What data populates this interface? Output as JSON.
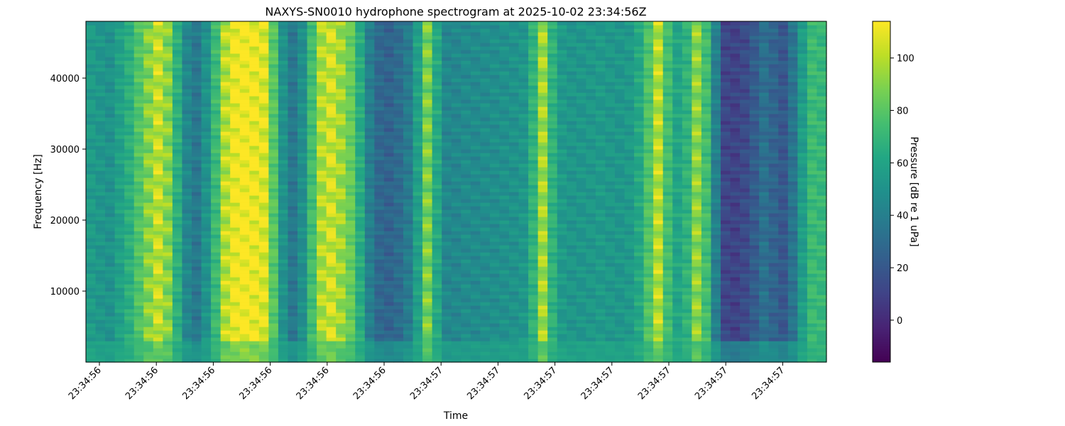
{
  "chart_data": {
    "type": "heatmap",
    "title": "NAXYS-SN0010 hydrophone spectrogram at 2025-10-02 23:34:56Z",
    "xlabel": "Time",
    "ylabel": "Frequency [Hz]",
    "colorbar_label": "Pressure [dB re 1 uPa]",
    "colormap": "viridis",
    "color_range": [
      -16,
      114
    ],
    "ylim": [
      0,
      48000
    ],
    "y_ticks": [
      10000,
      20000,
      30000,
      40000
    ],
    "x_tick_labels": [
      "23:34:56",
      "23:34:56",
      "23:34:56",
      "23:34:56",
      "23:34:56",
      "23:34:56",
      "23:34:57",
      "23:34:57",
      "23:34:57",
      "23:34:57",
      "23:34:57",
      "23:34:57",
      "23:34:57"
    ],
    "colorbar_ticks": [
      0,
      20,
      40,
      60,
      80,
      100
    ],
    "column_levels_db": [
      55,
      52,
      50,
      58,
      66,
      78,
      90,
      102,
      90,
      66,
      44,
      36,
      50,
      72,
      100,
      112,
      114,
      112,
      108,
      80,
      50,
      36,
      48,
      74,
      98,
      104,
      95,
      84,
      64,
      40,
      28,
      26,
      30,
      38,
      58,
      88,
      62,
      44,
      44,
      46,
      46,
      47,
      48,
      49,
      50,
      52,
      68,
      96,
      68,
      54,
      52,
      52,
      53,
      54,
      53,
      52,
      54,
      62,
      78,
      100,
      74,
      60,
      68,
      92,
      74,
      40,
      12,
      10,
      14,
      22,
      32,
      26,
      20,
      34,
      56,
      72,
      70
    ]
  }
}
